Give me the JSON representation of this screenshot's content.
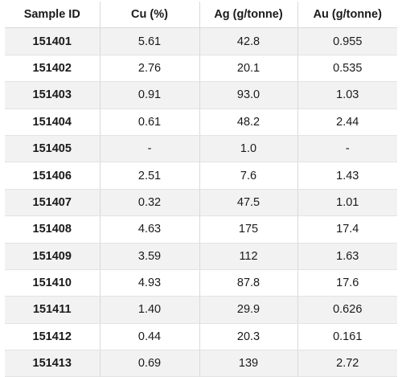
{
  "table": {
    "headers": [
      "Sample ID",
      "Cu (%)",
      "Ag (g/tonne)",
      "Au (g/tonne)"
    ],
    "rows": [
      [
        "151401",
        "5.61",
        "42.8",
        "0.955"
      ],
      [
        "151402",
        "2.76",
        "20.1",
        "0.535"
      ],
      [
        "151403",
        "0.91",
        "93.0",
        "1.03"
      ],
      [
        "151404",
        "0.61",
        "48.2",
        "2.44"
      ],
      [
        "151405",
        "-",
        "1.0",
        "-"
      ],
      [
        "151406",
        "2.51",
        "7.6",
        "1.43"
      ],
      [
        "151407",
        "0.32",
        "47.5",
        "1.01"
      ],
      [
        "151408",
        "4.63",
        "175",
        "17.4"
      ],
      [
        "151409",
        "3.59",
        "112",
        "1.63"
      ],
      [
        "151410",
        "4.93",
        "87.8",
        "17.6"
      ],
      [
        "151411",
        "1.40",
        "29.9",
        "0.626"
      ],
      [
        "151412",
        "0.44",
        "20.3",
        "0.161"
      ],
      [
        "151413",
        "0.69",
        "139",
        "2.72"
      ]
    ]
  },
  "colors": {
    "shaded_row": "#f2f2f2",
    "plain_row": "#ffffff",
    "grid": "#d9d9d9"
  }
}
